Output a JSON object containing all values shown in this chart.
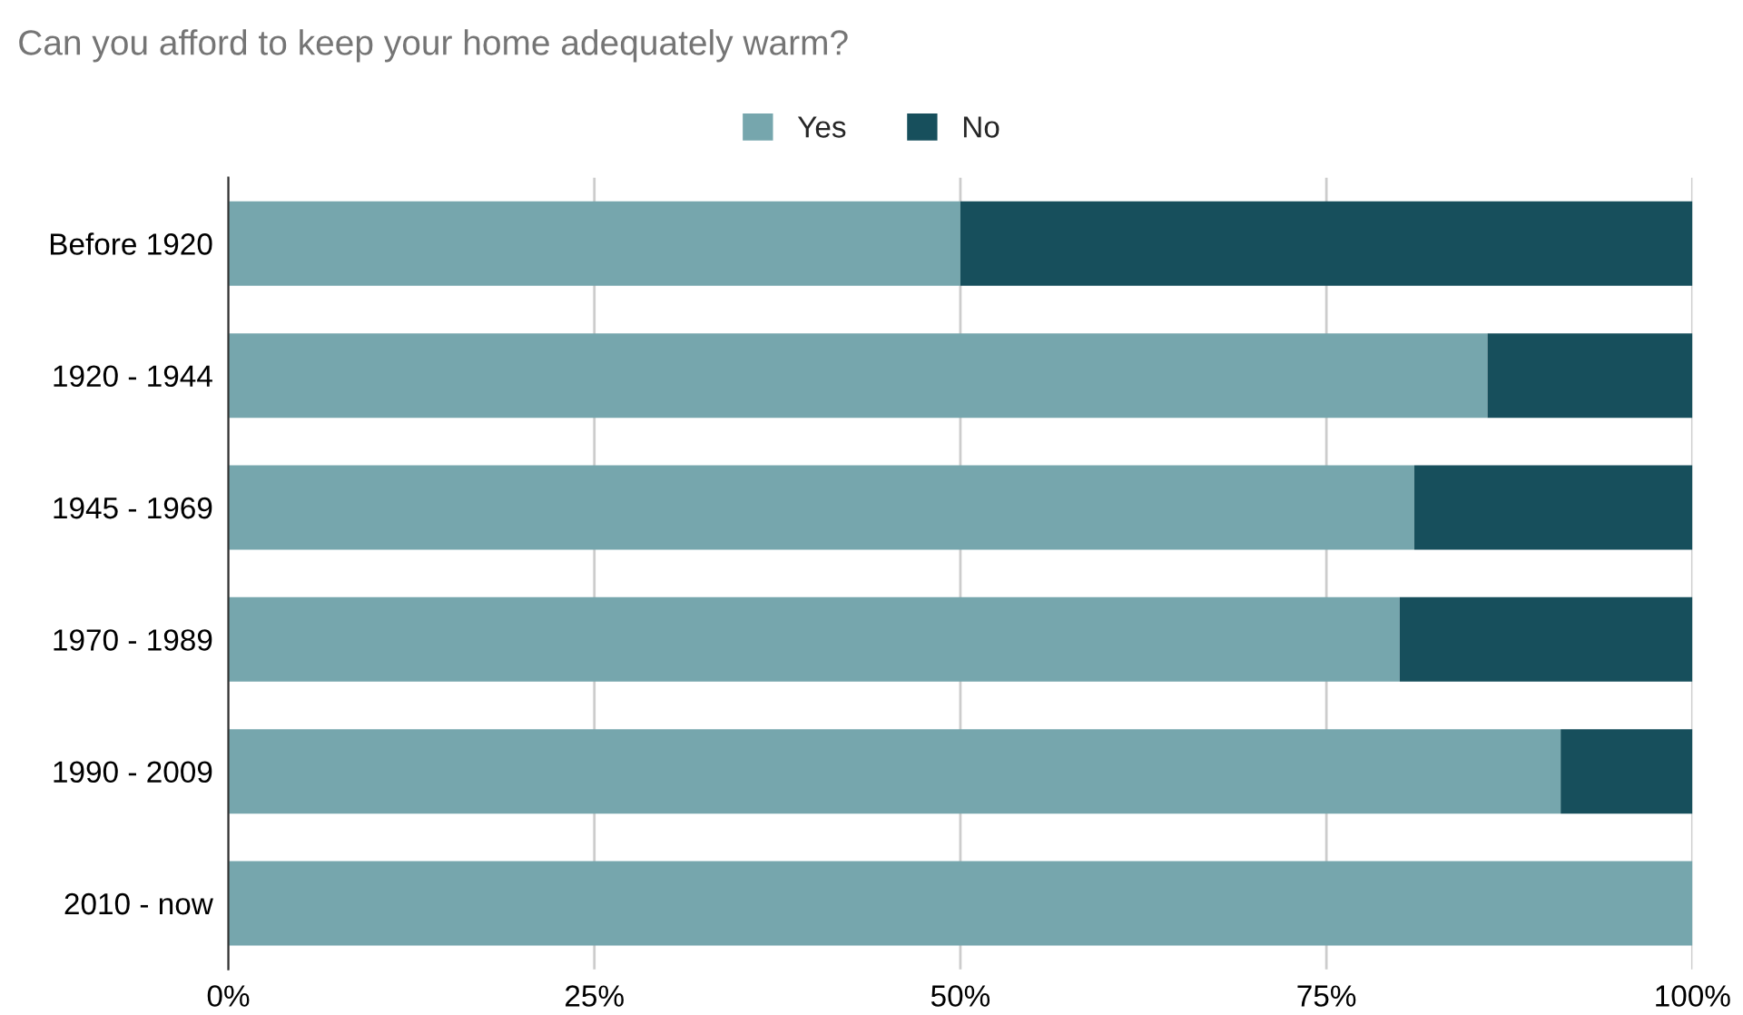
{
  "chart_data": {
    "type": "bar",
    "orientation": "horizontal",
    "stacked": true,
    "title": "Can you afford to keep your home adequately warm?",
    "categories": [
      "Before 1920",
      "1920 - 1944",
      "1945 - 1969",
      "1970 - 1989",
      "1990 - 2009",
      "2010 - now"
    ],
    "series": [
      {
        "name": "Yes",
        "color": "#76a6ad",
        "values": [
          50,
          86,
          81,
          80,
          91,
          100
        ]
      },
      {
        "name": "No",
        "color": "#174f5c",
        "values": [
          50,
          14,
          19,
          20,
          9,
          0
        ]
      }
    ],
    "xlim": [
      0,
      100
    ],
    "xticks": [
      {
        "value": 0,
        "label": "0%"
      },
      {
        "value": 25,
        "label": "25%"
      },
      {
        "value": 50,
        "label": "50%"
      },
      {
        "value": 75,
        "label": "75%"
      },
      {
        "value": 100,
        "label": "100%"
      }
    ],
    "grid": "x",
    "legend": "top"
  }
}
